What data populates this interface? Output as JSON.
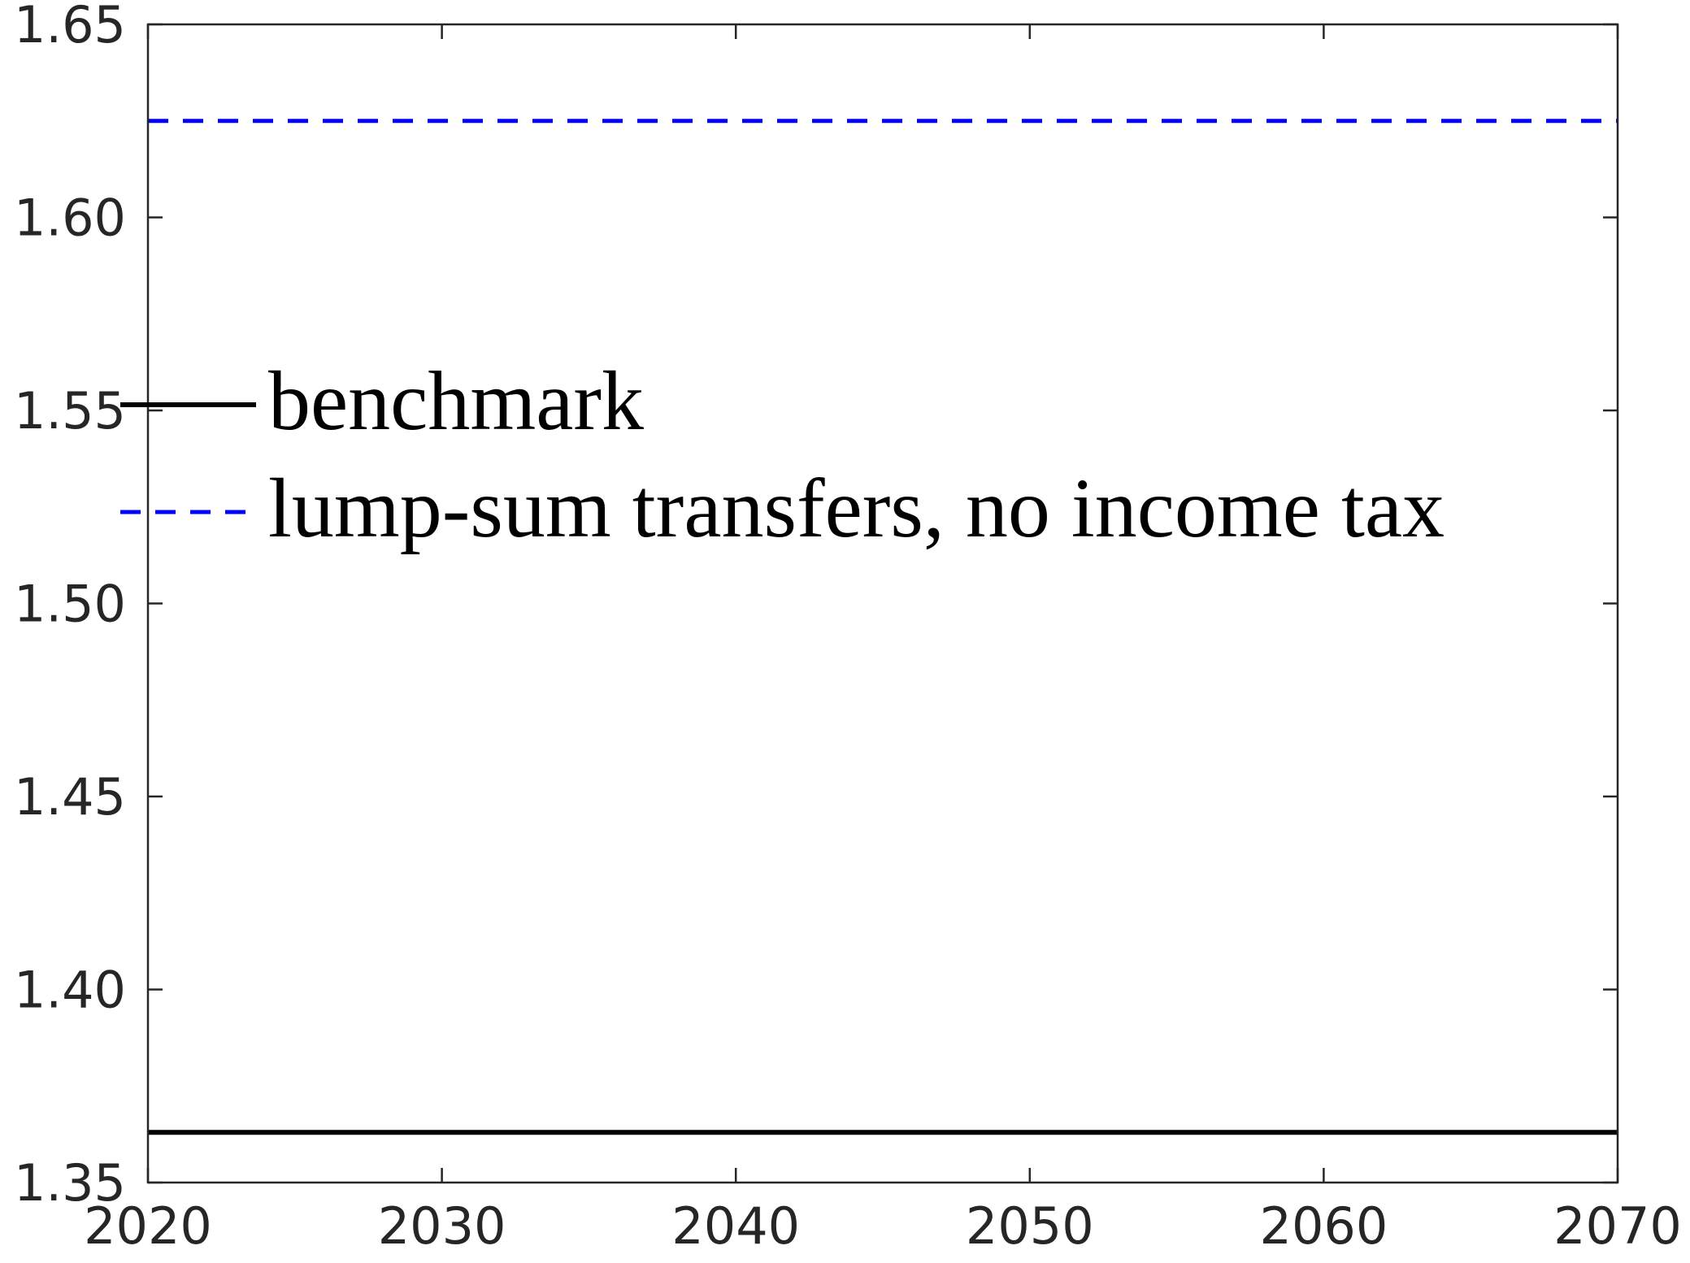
{
  "chart_data": {
    "type": "line",
    "title": "",
    "xlabel": "",
    "ylabel": "",
    "xlim": [
      2020,
      2070
    ],
    "ylim": [
      1.35,
      1.65
    ],
    "x_ticks": [
      2020,
      2030,
      2040,
      2050,
      2060,
      2070
    ],
    "x_tick_labels": [
      "2020",
      "2030",
      "2040",
      "2050",
      "2060",
      "2070"
    ],
    "y_ticks": [
      1.35,
      1.4,
      1.45,
      1.5,
      1.55,
      1.6,
      1.65
    ],
    "y_tick_labels": [
      "1.35",
      "1.40",
      "1.45",
      "1.50",
      "1.55",
      "1.60",
      "1.65"
    ],
    "grid": false,
    "legend_position": "middle-left",
    "series": [
      {
        "name": "benchmark",
        "color": "#000000",
        "line_style": "solid",
        "x": [
          2020,
          2070
        ],
        "y": [
          1.363,
          1.363
        ]
      },
      {
        "name": "lump-sum transfers, no income tax",
        "color": "#0000ff",
        "line_style": "dashed",
        "x": [
          2020,
          2070
        ],
        "y": [
          1.625,
          1.625
        ]
      }
    ]
  }
}
